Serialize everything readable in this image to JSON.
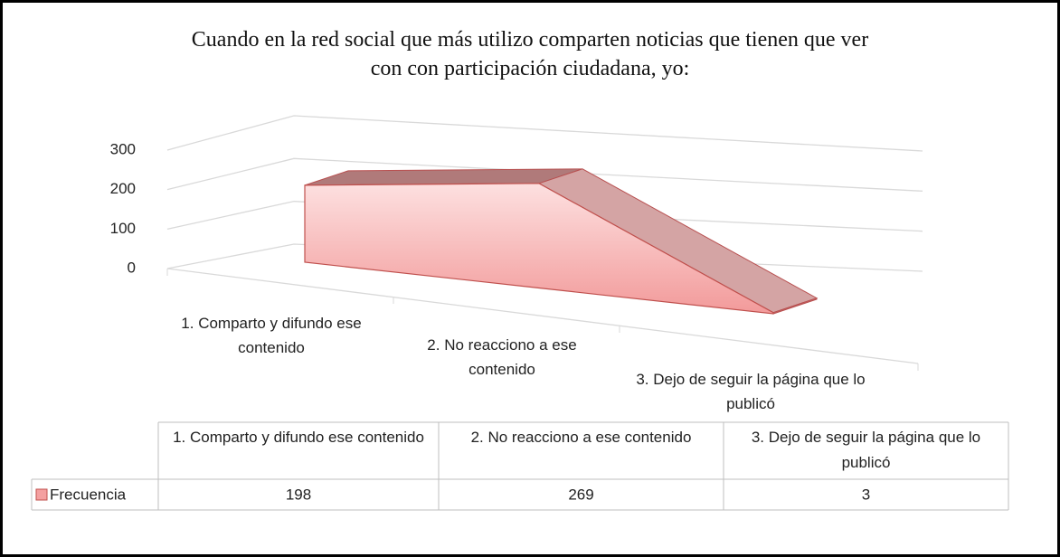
{
  "chart_data": {
    "type": "area",
    "title": "Cuando en la red social que más utilizo comparten noticias que tienen que ver con con participación ciudadana, yo:",
    "categories": [
      "1. Comparto y difundo ese contenido",
      "2. No reacciono a ese contenido",
      "3. Dejo de seguir la página que lo publicó"
    ],
    "series": [
      {
        "name": "Frecuencia",
        "color": "#f4a0a0",
        "values": [
          198,
          269,
          3
        ]
      }
    ],
    "ylim": [
      0,
      300
    ],
    "yticks": [
      0,
      100,
      200,
      300
    ],
    "grid": true,
    "data_table": true
  }
}
